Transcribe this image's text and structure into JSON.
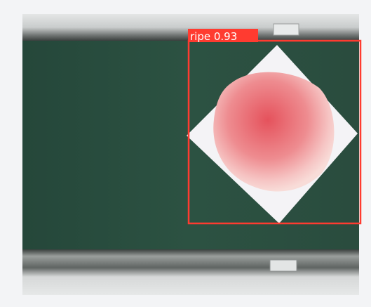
{
  "detections": [
    {
      "label": "ripe 0.93"
    }
  ]
}
